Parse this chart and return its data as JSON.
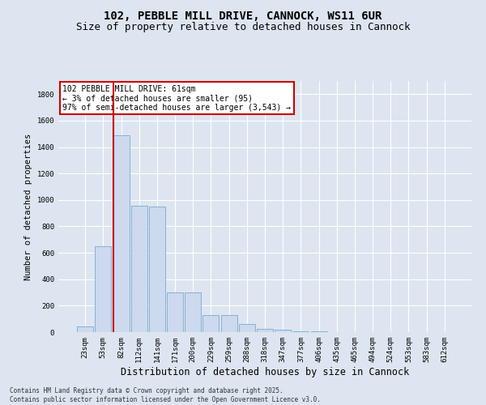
{
  "title": "102, PEBBLE MILL DRIVE, CANNOCK, WS11 6UR",
  "subtitle": "Size of property relative to detached houses in Cannock",
  "xlabel": "Distribution of detached houses by size in Cannock",
  "ylabel": "Number of detached properties",
  "categories": [
    "23sqm",
    "53sqm",
    "82sqm",
    "112sqm",
    "141sqm",
    "171sqm",
    "200sqm",
    "229sqm",
    "259sqm",
    "288sqm",
    "318sqm",
    "347sqm",
    "377sqm",
    "406sqm",
    "435sqm",
    "465sqm",
    "494sqm",
    "524sqm",
    "553sqm",
    "583sqm",
    "612sqm"
  ],
  "values": [
    45,
    650,
    1490,
    955,
    950,
    300,
    300,
    130,
    130,
    60,
    25,
    20,
    5,
    5,
    2,
    1,
    0,
    0,
    0,
    0,
    0
  ],
  "bar_color": "#ccd9ee",
  "bar_edge_color": "#7aaad0",
  "background_color": "#dde5f0",
  "grid_color": "#ffffff",
  "ylim": [
    0,
    1900
  ],
  "yticks": [
    0,
    200,
    400,
    600,
    800,
    1000,
    1200,
    1400,
    1600,
    1800
  ],
  "vline_color": "#cc0000",
  "annotation_text": "102 PEBBLE MILL DRIVE: 61sqm\n← 3% of detached houses are smaller (95)\n97% of semi-detached houses are larger (3,543) →",
  "annotation_box_color": "#cc0000",
  "footer_line1": "Contains HM Land Registry data © Crown copyright and database right 2025.",
  "footer_line2": "Contains public sector information licensed under the Open Government Licence v3.0.",
  "title_fontsize": 10,
  "subtitle_fontsize": 9,
  "tick_fontsize": 6.5,
  "xlabel_fontsize": 8.5,
  "ylabel_fontsize": 7.5,
  "annotation_fontsize": 7
}
